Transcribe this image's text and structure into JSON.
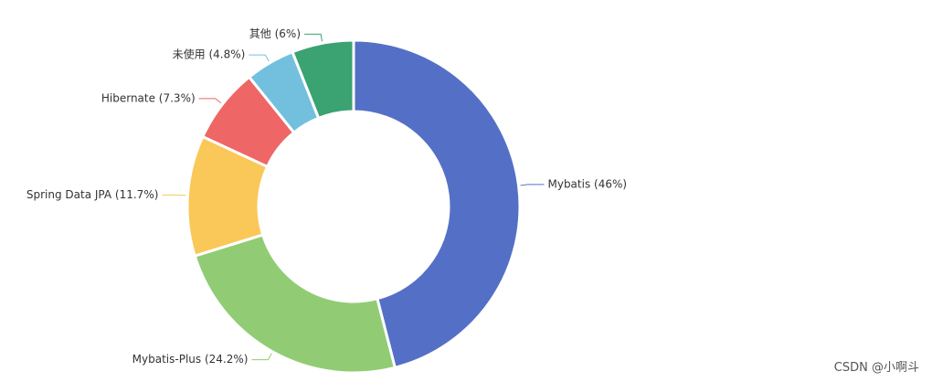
{
  "chart_data": {
    "type": "pie",
    "variant": "donut",
    "title": "",
    "slices": [
      {
        "name": "Mybatis",
        "label": "Mybatis (46%)",
        "value": 46,
        "color": "#5470c6"
      },
      {
        "name": "Mybatis-Plus",
        "label": "Mybatis-Plus (24.2%)",
        "value": 24.2,
        "color": "#91cc75"
      },
      {
        "name": "Spring Data JPA",
        "label": "Spring Data JPA (11.7%)",
        "value": 11.7,
        "color": "#fac858"
      },
      {
        "name": "Hibernate",
        "label": "Hibernate (7.3%)",
        "value": 7.3,
        "color": "#ee6666"
      },
      {
        "name": "未使用",
        "label": "未使用 (4.8%)",
        "value": 4.8,
        "color": "#73c0de"
      },
      {
        "name": "其他",
        "label": "其他 (6%)",
        "value": 6,
        "color": "#3ba272"
      }
    ]
  },
  "watermark": "CSDN @小啊斗"
}
